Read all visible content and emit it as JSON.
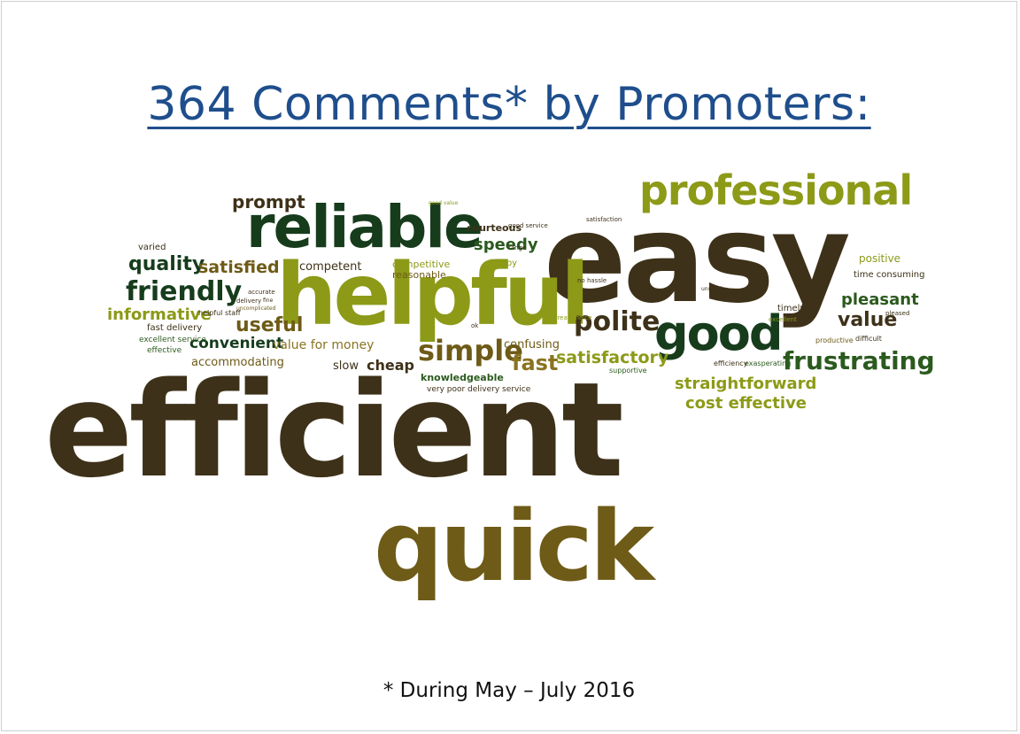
{
  "title": "364 Comments* by Promoters:",
  "footnote": "* During May – July 2016",
  "colors": {
    "title": "#1f4e8c",
    "dark_brown": "#3e3119",
    "dark_green": "#163c1c",
    "olive": "#8c9a17",
    "mustard": "#7a6a1c",
    "green": "#2b5a1e"
  },
  "words": {
    "efficient": "efficient",
    "quick": "quick",
    "easy": "easy",
    "helpful": "helpful",
    "reliable": "reliable",
    "professional": "professional",
    "good": "good",
    "polite": "polite",
    "friendly": "friendly",
    "simple": "simple",
    "frustrating": "frustrating",
    "fast": "fast",
    "quality": "quality",
    "prompt": "prompt",
    "useful": "useful",
    "value": "value",
    "satisfied": "satisfied",
    "satisfactory": "satisfactory",
    "informative": "informative",
    "straightforward": "straightforward",
    "cost_effective": "cost effective",
    "pleasant": "pleasant",
    "convenient": "convenient",
    "speedy": "speedy",
    "cheap": "cheap",
    "value_for_money": "value for money",
    "accommodating": "accommodating",
    "competent": "competent",
    "slow": "slow",
    "confusing": "confusing",
    "knowledgeable": "knowledgeable",
    "courteous": "courteous",
    "competitive": "competitive",
    "reasonable": "reasonable",
    "positive": "positive",
    "time_consuming": "time consuming",
    "fast_delivery": "fast delivery",
    "excellent_service": "excellent service",
    "effective": "effective",
    "varied": "varied",
    "happy": "happy",
    "helpful_staff": "helpful staff",
    "very_poor_delivery_service": "very poor delivery service",
    "timely": "timely",
    "productive": "productive",
    "difficult": "difficult",
    "exasperating": "exasperating",
    "efficiency": "efficiency",
    "supportive": "supportive",
    "no_hassle": "no hassle",
    "great_choice": "great choice",
    "good_value": "good value",
    "good_service": "good service",
    "satisfaction": "satisfaction",
    "excellent": "excellent",
    "pleased": "pleased",
    "delivery": "delivery",
    "accurate": "accurate",
    "range": "range",
    "ok": "ok",
    "uncomplicated": "uncomplicated",
    "unusual": "unusual",
    "fine": "fine",
    "cheap_prefix": "cheap"
  }
}
